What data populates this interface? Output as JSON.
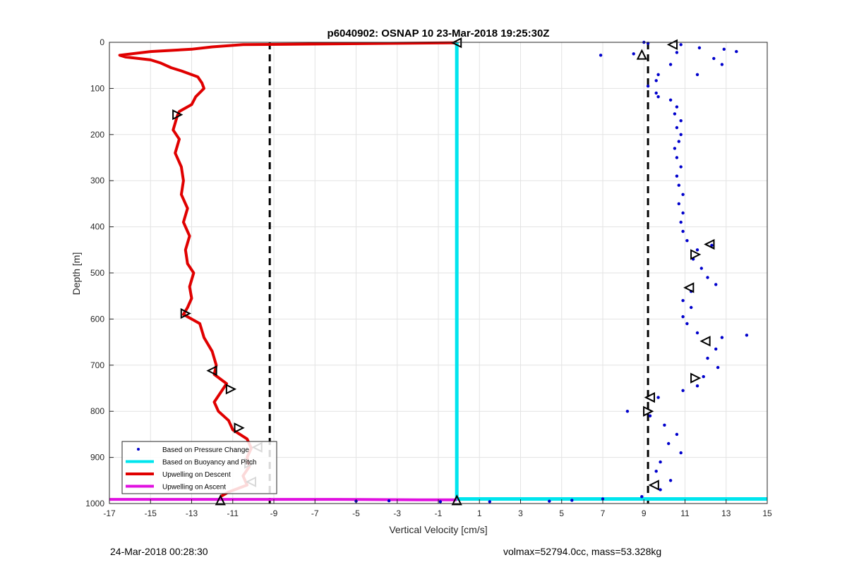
{
  "chart_data": {
    "type": "line",
    "title": "p6040902: OSNAP 10 23-Mar-2018 19:25:30Z",
    "xlabel": "Vertical Velocity [cm/s]",
    "ylabel": "Depth [m]",
    "xlim": [
      -17,
      15
    ],
    "ylim": [
      1000,
      0
    ],
    "y_reversed": true,
    "grid": true,
    "legend_position": "bottom-left",
    "x_ticks": [
      "-17",
      "-15",
      "-13",
      "-11",
      "-9",
      "-7",
      "-5",
      "-3",
      "-1",
      "1",
      "3",
      "5",
      "7",
      "9",
      "11",
      "13",
      "15"
    ],
    "y_ticks": [
      "0",
      "100",
      "200",
      "300",
      "400",
      "500",
      "600",
      "700",
      "800",
      "900",
      "1000"
    ],
    "legend": [
      {
        "label": "Based on Pressure Change",
        "color": "#0000cc",
        "style": "dot"
      },
      {
        "label": "Based on Buoyancy and Pitch",
        "color": "#00e5ee",
        "style": "line"
      },
      {
        "label": "Upwelling on Descent",
        "color": "#e00000",
        "style": "line"
      },
      {
        "label": "Upwelling on Ascent",
        "color": "#e010e0",
        "style": "line"
      }
    ],
    "reference_lines": [
      {
        "axis": "x",
        "value": -9.2,
        "style": "dashed",
        "color": "#000000"
      },
      {
        "axis": "x",
        "value": 9.2,
        "style": "dashed",
        "color": "#000000"
      }
    ],
    "series": [
      {
        "name": "Upwelling on Descent",
        "color": "#e00000",
        "points": [
          [
            -0.1,
            1
          ],
          [
            -10.5,
            5
          ],
          [
            -12,
            10
          ],
          [
            -13,
            15
          ],
          [
            -15,
            20
          ],
          [
            -16.5,
            28
          ],
          [
            -16.2,
            32
          ],
          [
            -15,
            38
          ],
          [
            -14.5,
            45
          ],
          [
            -14,
            55
          ],
          [
            -13.5,
            62
          ],
          [
            -12.7,
            75
          ],
          [
            -12.5,
            88
          ],
          [
            -12.4,
            100
          ],
          [
            -12.8,
            118
          ],
          [
            -13,
            135
          ],
          [
            -13.6,
            150
          ],
          [
            -13.7,
            160
          ],
          [
            -13.8,
            175
          ],
          [
            -13.9,
            190
          ],
          [
            -13.6,
            210
          ],
          [
            -13.8,
            240
          ],
          [
            -13.5,
            270
          ],
          [
            -13.4,
            300
          ],
          [
            -13.5,
            330
          ],
          [
            -13.2,
            360
          ],
          [
            -13.4,
            390
          ],
          [
            -13.1,
            420
          ],
          [
            -13.3,
            450
          ],
          [
            -13.2,
            480
          ],
          [
            -12.9,
            500
          ],
          [
            -13.1,
            530
          ],
          [
            -13,
            555
          ],
          [
            -13.2,
            575
          ],
          [
            -13.4,
            590
          ],
          [
            -12.6,
            610
          ],
          [
            -12.4,
            640
          ],
          [
            -12,
            670
          ],
          [
            -11.8,
            700
          ],
          [
            -11.9,
            720
          ],
          [
            -11.3,
            740
          ],
          [
            -11.6,
            760
          ],
          [
            -11.9,
            780
          ],
          [
            -11.7,
            800
          ],
          [
            -11.2,
            820
          ],
          [
            -11,
            840
          ],
          [
            -10.3,
            860
          ],
          [
            -10.1,
            880
          ],
          [
            -10.3,
            900
          ],
          [
            -10.2,
            920
          ],
          [
            -10.5,
            940
          ],
          [
            -10.3,
            960
          ],
          [
            -11.2,
            975
          ],
          [
            -11.6,
            985
          ]
        ]
      },
      {
        "name": "Upwelling on Ascent",
        "color": "#e010e0",
        "points": [
          [
            -17,
            991
          ],
          [
            -6,
            991
          ],
          [
            -2,
            992
          ],
          [
            -0.1,
            992
          ]
        ]
      },
      {
        "name": "Based on Buoyancy and Pitch",
        "color": "#00e5ee",
        "points": [
          [
            -0.1,
            0
          ],
          [
            -0.1,
            990
          ],
          [
            15,
            990
          ]
        ]
      },
      {
        "name": "Based on Pressure Change",
        "color": "#0000cc",
        "points": [
          [
            9.0,
            0
          ],
          [
            9.2,
            2
          ],
          [
            10.8,
            5
          ],
          [
            13.5,
            20
          ],
          [
            12.9,
            15
          ],
          [
            11.7,
            12
          ],
          [
            10.6,
            22
          ],
          [
            12.4,
            35
          ],
          [
            12.8,
            48
          ],
          [
            6.9,
            28
          ],
          [
            8.5,
            25
          ],
          [
            11.6,
            70
          ],
          [
            10.3,
            48
          ],
          [
            9.7,
            70
          ],
          [
            9.6,
            83
          ],
          [
            9.2,
            95
          ],
          [
            9.6,
            110
          ],
          [
            9.7,
            118
          ],
          [
            10.3,
            125
          ],
          [
            10.6,
            140
          ],
          [
            10.5,
            155
          ],
          [
            10.8,
            170
          ],
          [
            10.6,
            185
          ],
          [
            10.8,
            200
          ],
          [
            10.7,
            215
          ],
          [
            10.5,
            230
          ],
          [
            10.6,
            250
          ],
          [
            10.8,
            270
          ],
          [
            10.6,
            290
          ],
          [
            10.7,
            310
          ],
          [
            10.9,
            330
          ],
          [
            10.7,
            350
          ],
          [
            10.9,
            370
          ],
          [
            10.8,
            390
          ],
          [
            10.9,
            410
          ],
          [
            11.1,
            430
          ],
          [
            11.6,
            450
          ],
          [
            12.3,
            440
          ],
          [
            11.4,
            470
          ],
          [
            11.8,
            490
          ],
          [
            12.1,
            510
          ],
          [
            12.5,
            525
          ],
          [
            11.3,
            540
          ],
          [
            10.9,
            560
          ],
          [
            11.3,
            575
          ],
          [
            10.9,
            595
          ],
          [
            11.1,
            610
          ],
          [
            11.6,
            630
          ],
          [
            12.8,
            640
          ],
          [
            14.0,
            635
          ],
          [
            12.5,
            665
          ],
          [
            12.1,
            685
          ],
          [
            12.6,
            705
          ],
          [
            11.9,
            725
          ],
          [
            11.6,
            745
          ],
          [
            10.9,
            755
          ],
          [
            9.7,
            770
          ],
          [
            8.2,
            800
          ],
          [
            9.3,
            810
          ],
          [
            10.0,
            830
          ],
          [
            10.6,
            850
          ],
          [
            10.2,
            870
          ],
          [
            10.8,
            890
          ],
          [
            9.8,
            910
          ],
          [
            9.6,
            930
          ],
          [
            10.3,
            950
          ],
          [
            9.8,
            970
          ],
          [
            8.9,
            985
          ],
          [
            7.0,
            990
          ],
          [
            5.5,
            993
          ],
          [
            4.4,
            995
          ],
          [
            1.5,
            996
          ],
          [
            -0.9,
            996
          ],
          [
            -3.4,
            994
          ],
          [
            -5.0,
            995
          ]
        ]
      }
    ],
    "markers": [
      {
        "x": -0.1,
        "y": 1,
        "dir": "left"
      },
      {
        "x": 10.4,
        "y": 5,
        "dir": "left"
      },
      {
        "x": 8.9,
        "y": 27,
        "dir": "up"
      },
      {
        "x": -13.7,
        "y": 157,
        "dir": "right"
      },
      {
        "x": 12.2,
        "y": 438,
        "dir": "left"
      },
      {
        "x": 11.5,
        "y": 460,
        "dir": "right"
      },
      {
        "x": 11.2,
        "y": 532,
        "dir": "left"
      },
      {
        "x": -13.3,
        "y": 588,
        "dir": "right"
      },
      {
        "x": 12.0,
        "y": 648,
        "dir": "left"
      },
      {
        "x": -12.0,
        "y": 712,
        "dir": "left"
      },
      {
        "x": 11.5,
        "y": 728,
        "dir": "right"
      },
      {
        "x": -11.1,
        "y": 752,
        "dir": "right"
      },
      {
        "x": 9.3,
        "y": 770,
        "dir": "left"
      },
      {
        "x": 9.2,
        "y": 800,
        "dir": "right"
      },
      {
        "x": -10.7,
        "y": 836,
        "dir": "right"
      },
      {
        "x": -9.8,
        "y": 878,
        "dir": "left"
      },
      {
        "x": -10.2,
        "y": 913,
        "dir": "right"
      },
      {
        "x": -10.1,
        "y": 953,
        "dir": "left"
      },
      {
        "x": 9.5,
        "y": 960,
        "dir": "left"
      },
      {
        "x": -11.6,
        "y": 993,
        "dir": "up"
      },
      {
        "x": -0.1,
        "y": 993,
        "dir": "up"
      }
    ]
  },
  "footer": {
    "left": "24-Mar-2018 00:28:30",
    "right": "volmax=52794.0cc, mass=53.328kg"
  }
}
